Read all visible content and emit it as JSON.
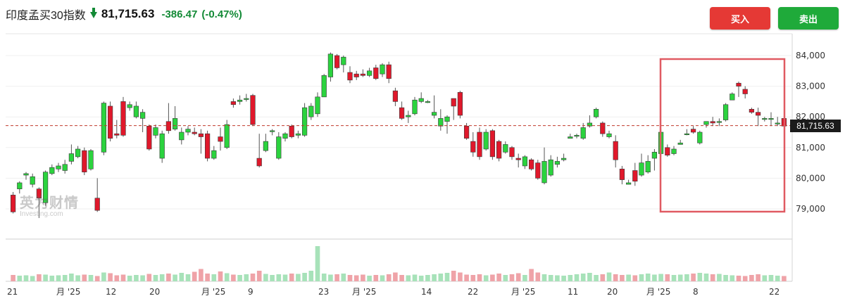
{
  "header": {
    "title": "印度孟买30指数",
    "price": "81,715.63",
    "change": "-386.47",
    "change_pct": "(-0.47%)",
    "direction_icon": "arrow-down-icon",
    "down_color": "#138a36"
  },
  "buttons": {
    "buy": "买入",
    "sell": "卖出",
    "buy_color": "#e53935",
    "sell_color": "#1faa3a"
  },
  "watermark": {
    "brand": "英为财情",
    "sub": "Investing.com"
  },
  "chart_data": {
    "type": "candlestick",
    "y_ticks": [
      "84,000",
      "83,000",
      "82,000",
      "81,000",
      "80,000",
      "79,000"
    ],
    "y_tick_values": [
      84000,
      83000,
      82000,
      81000,
      80000,
      79000
    ],
    "x_ticks": [
      "21",
      "月 '25",
      "12",
      "20",
      "月 '25",
      "9",
      "23",
      "月 '25",
      "14",
      "22",
      "月 '25",
      "11",
      "20",
      "月 '25",
      "8",
      "22"
    ],
    "last_price": 81715.63,
    "last_price_label": "81,715.63",
    "up_color": "#2bd33e",
    "down_color": "#e0182b",
    "highlight_box": "right",
    "candles": [
      [
        79450,
        78900,
        79550,
        78850
      ],
      [
        79650,
        79850,
        79900,
        79500
      ],
      [
        80100,
        80150,
        80200,
        79950
      ],
      [
        79800,
        80050,
        80150,
        79700
      ],
      [
        79650,
        79350,
        79700,
        78700
      ],
      [
        79200,
        80200,
        80250,
        79100
      ],
      [
        80150,
        80350,
        80450,
        80100
      ],
      [
        80300,
        80400,
        80500,
        80200
      ],
      [
        80250,
        80450,
        80600,
        80150
      ],
      [
        80550,
        80800,
        81100,
        80450
      ],
      [
        80700,
        80950,
        81050,
        80650
      ],
      [
        80900,
        80200,
        81000,
        80100
      ],
      [
        80300,
        80900,
        80950,
        80250
      ],
      [
        79350,
        78950,
        80000,
        78900
      ],
      [
        80850,
        82450,
        82500,
        80750
      ],
      [
        82350,
        81300,
        82500,
        81200
      ],
      [
        81450,
        81400,
        81900,
        81300
      ],
      [
        82500,
        81400,
        82650,
        81350
      ],
      [
        82300,
        82400,
        82500,
        82200
      ],
      [
        82000,
        82350,
        82500,
        81950
      ],
      [
        81950,
        82150,
        82250,
        81500
      ],
      [
        81700,
        80950,
        81750,
        80900
      ],
      [
        81400,
        81650,
        81750,
        81300
      ],
      [
        80650,
        81450,
        81550,
        80500
      ],
      [
        81850,
        81550,
        82450,
        81450
      ],
      [
        81600,
        81950,
        82350,
        81550
      ],
      [
        81250,
        81500,
        81650,
        81100
      ],
      [
        81500,
        81600,
        81700,
        81400
      ],
      [
        81500,
        81450,
        81650,
        81400
      ],
      [
        81450,
        81350,
        81600,
        80800
      ],
      [
        81450,
        80650,
        81550,
        80550
      ],
      [
        80650,
        80900,
        81050,
        80600
      ],
      [
        81350,
        81200,
        81650,
        80900
      ],
      [
        81000,
        81750,
        81900,
        80950
      ],
      [
        82500,
        82400,
        82600,
        82300
      ],
      [
        82500,
        82550,
        82700,
        82400
      ],
      [
        82600,
        82600,
        82750,
        82500
      ],
      [
        82700,
        81750,
        82750,
        81700
      ],
      [
        80650,
        80400,
        81450,
        80350
      ],
      [
        80900,
        81200,
        81450,
        80850
      ],
      [
        81550,
        81550,
        81600,
        81400
      ],
      [
        80650,
        81350,
        81500,
        80600
      ],
      [
        81300,
        81450,
        81500,
        81200
      ],
      [
        81700,
        81350,
        81750,
        81300
      ],
      [
        81400,
        81450,
        81550,
        81300
      ],
      [
        81400,
        82300,
        82450,
        81350
      ],
      [
        82000,
        82350,
        82450,
        81900
      ],
      [
        82100,
        82650,
        82800,
        82000
      ],
      [
        82650,
        83350,
        83400,
        82650
      ],
      [
        83300,
        84050,
        84100,
        83150
      ],
      [
        84000,
        83600,
        84050,
        83550
      ],
      [
        83700,
        83950,
        84000,
        83450
      ],
      [
        83450,
        83200,
        83650,
        83100
      ],
      [
        83400,
        83300,
        83500,
        83200
      ],
      [
        83400,
        83350,
        83550,
        83300
      ],
      [
        83350,
        83500,
        83600,
        83300
      ],
      [
        83600,
        83250,
        83700,
        83200
      ],
      [
        83400,
        83700,
        83750,
        83300
      ],
      [
        83700,
        83250,
        83800,
        83100
      ],
      [
        82850,
        82500,
        82950,
        82350
      ],
      [
        82300,
        81950,
        82500,
        81900
      ],
      [
        82000,
        82050,
        82200,
        81800
      ],
      [
        82100,
        82550,
        82650,
        82050
      ],
      [
        82500,
        82600,
        82800,
        82450
      ],
      [
        82500,
        82500,
        82550,
        82450
      ],
      [
        82050,
        82150,
        82700,
        81950
      ],
      [
        81700,
        81950,
        82250,
        81550
      ],
      [
        81850,
        82000,
        82050,
        81450
      ],
      [
        82600,
        82350,
        82600,
        81900
      ],
      [
        82800,
        82050,
        82850,
        81950
      ],
      [
        81700,
        81300,
        81800,
        81250
      ],
      [
        81200,
        80850,
        81500,
        80700
      ],
      [
        81500,
        80700,
        81650,
        80600
      ],
      [
        80950,
        81500,
        81600,
        80900
      ],
      [
        81550,
        80700,
        81600,
        80600
      ],
      [
        81200,
        80650,
        81250,
        80550
      ],
      [
        80850,
        81100,
        81200,
        80800
      ],
      [
        81000,
        80700,
        81050,
        80600
      ],
      [
        80650,
        80600,
        80800,
        80350
      ],
      [
        80400,
        80700,
        80750,
        80300
      ],
      [
        80600,
        80300,
        80650,
        80250
      ],
      [
        80500,
        80000,
        80600,
        79950
      ],
      [
        79850,
        80550,
        81000,
        79800
      ],
      [
        80100,
        80600,
        80750,
        80050
      ],
      [
        80450,
        80550,
        80700,
        80350
      ],
      [
        80600,
        80650,
        80800,
        80550
      ],
      [
        81300,
        81350,
        81450,
        81300
      ],
      [
        81400,
        81400,
        81450,
        81300
      ],
      [
        81300,
        81650,
        81800,
        81250
      ],
      [
        81700,
        81800,
        82050,
        81650
      ],
      [
        82000,
        82250,
        82300,
        81950
      ],
      [
        81800,
        81450,
        81850,
        81350
      ],
      [
        81350,
        81450,
        81550,
        81300
      ],
      [
        81200,
        80600,
        81400,
        80350
      ],
      [
        80300,
        79950,
        80400,
        79800
      ],
      [
        79800,
        79850,
        79950,
        79800
      ],
      [
        80250,
        79900,
        80500,
        79750
      ],
      [
        80100,
        80500,
        80800,
        80050
      ],
      [
        80200,
        80550,
        80750,
        80150
      ],
      [
        80650,
        80850,
        80950,
        80250
      ],
      [
        80800,
        81500,
        81600,
        80700
      ],
      [
        81000,
        80750,
        81100,
        80700
      ],
      [
        80800,
        80950,
        81050,
        80750
      ],
      [
        81100,
        81150,
        81250,
        81100
      ],
      [
        81450,
        81450,
        81600,
        81400
      ],
      [
        81600,
        81500,
        81700,
        81450
      ],
      [
        81150,
        81500,
        81550,
        81100
      ],
      [
        81750,
        81850,
        81850,
        81650
      ],
      [
        81850,
        81800,
        82000,
        81700
      ],
      [
        81850,
        81850,
        81950,
        81700
      ],
      [
        81900,
        82400,
        82450,
        81850
      ],
      [
        82550,
        82750,
        82800,
        82550
      ],
      [
        83100,
        83000,
        83150,
        82650
      ],
      [
        82900,
        82750,
        83000,
        82600
      ],
      [
        82250,
        82150,
        82300,
        82100
      ],
      [
        82150,
        82050,
        82300,
        81700
      ],
      [
        81950,
        81950,
        82000,
        81850
      ],
      [
        81950,
        81950,
        82150,
        81700
      ],
      [
        81800,
        81800,
        82000,
        81700
      ],
      [
        81950,
        81700,
        81950,
        81650
      ]
    ],
    "volumes": [
      0.18,
      0.16,
      0.17,
      0.15,
      0.2,
      0.19,
      0.16,
      0.17,
      0.18,
      0.22,
      0.17,
      0.19,
      0.18,
      0.15,
      0.25,
      0.23,
      0.17,
      0.19,
      0.16,
      0.18,
      0.17,
      0.21,
      0.18,
      0.2,
      0.22,
      0.19,
      0.24,
      0.2,
      0.27,
      0.35,
      0.22,
      0.2,
      0.28,
      0.23,
      0.19,
      0.18,
      0.2,
      0.22,
      0.3,
      0.21,
      0.18,
      0.2,
      0.19,
      0.22,
      0.21,
      0.24,
      0.3,
      1.0,
      0.22,
      0.19,
      0.2,
      0.22,
      0.18,
      0.17,
      0.19,
      0.16,
      0.18,
      0.17,
      0.2,
      0.25,
      0.18,
      0.17,
      0.19,
      0.16,
      0.18,
      0.2,
      0.22,
      0.24,
      0.3,
      0.25,
      0.19,
      0.18,
      0.2,
      0.17,
      0.19,
      0.22,
      0.18,
      0.2,
      0.23,
      0.18,
      0.35,
      0.25,
      0.2,
      0.18,
      0.17,
      0.16,
      0.18,
      0.2,
      0.22,
      0.24,
      0.18,
      0.2,
      0.25,
      0.2,
      0.18,
      0.19,
      0.17,
      0.2,
      0.22,
      0.19,
      0.21,
      0.2,
      0.18,
      0.19,
      0.2,
      0.22,
      0.24,
      0.22,
      0.2,
      0.21,
      0.18,
      0.17,
      0.16,
      0.15,
      0.18,
      0.2,
      0.17,
      0.18,
      0.16,
      0.15
    ]
  }
}
